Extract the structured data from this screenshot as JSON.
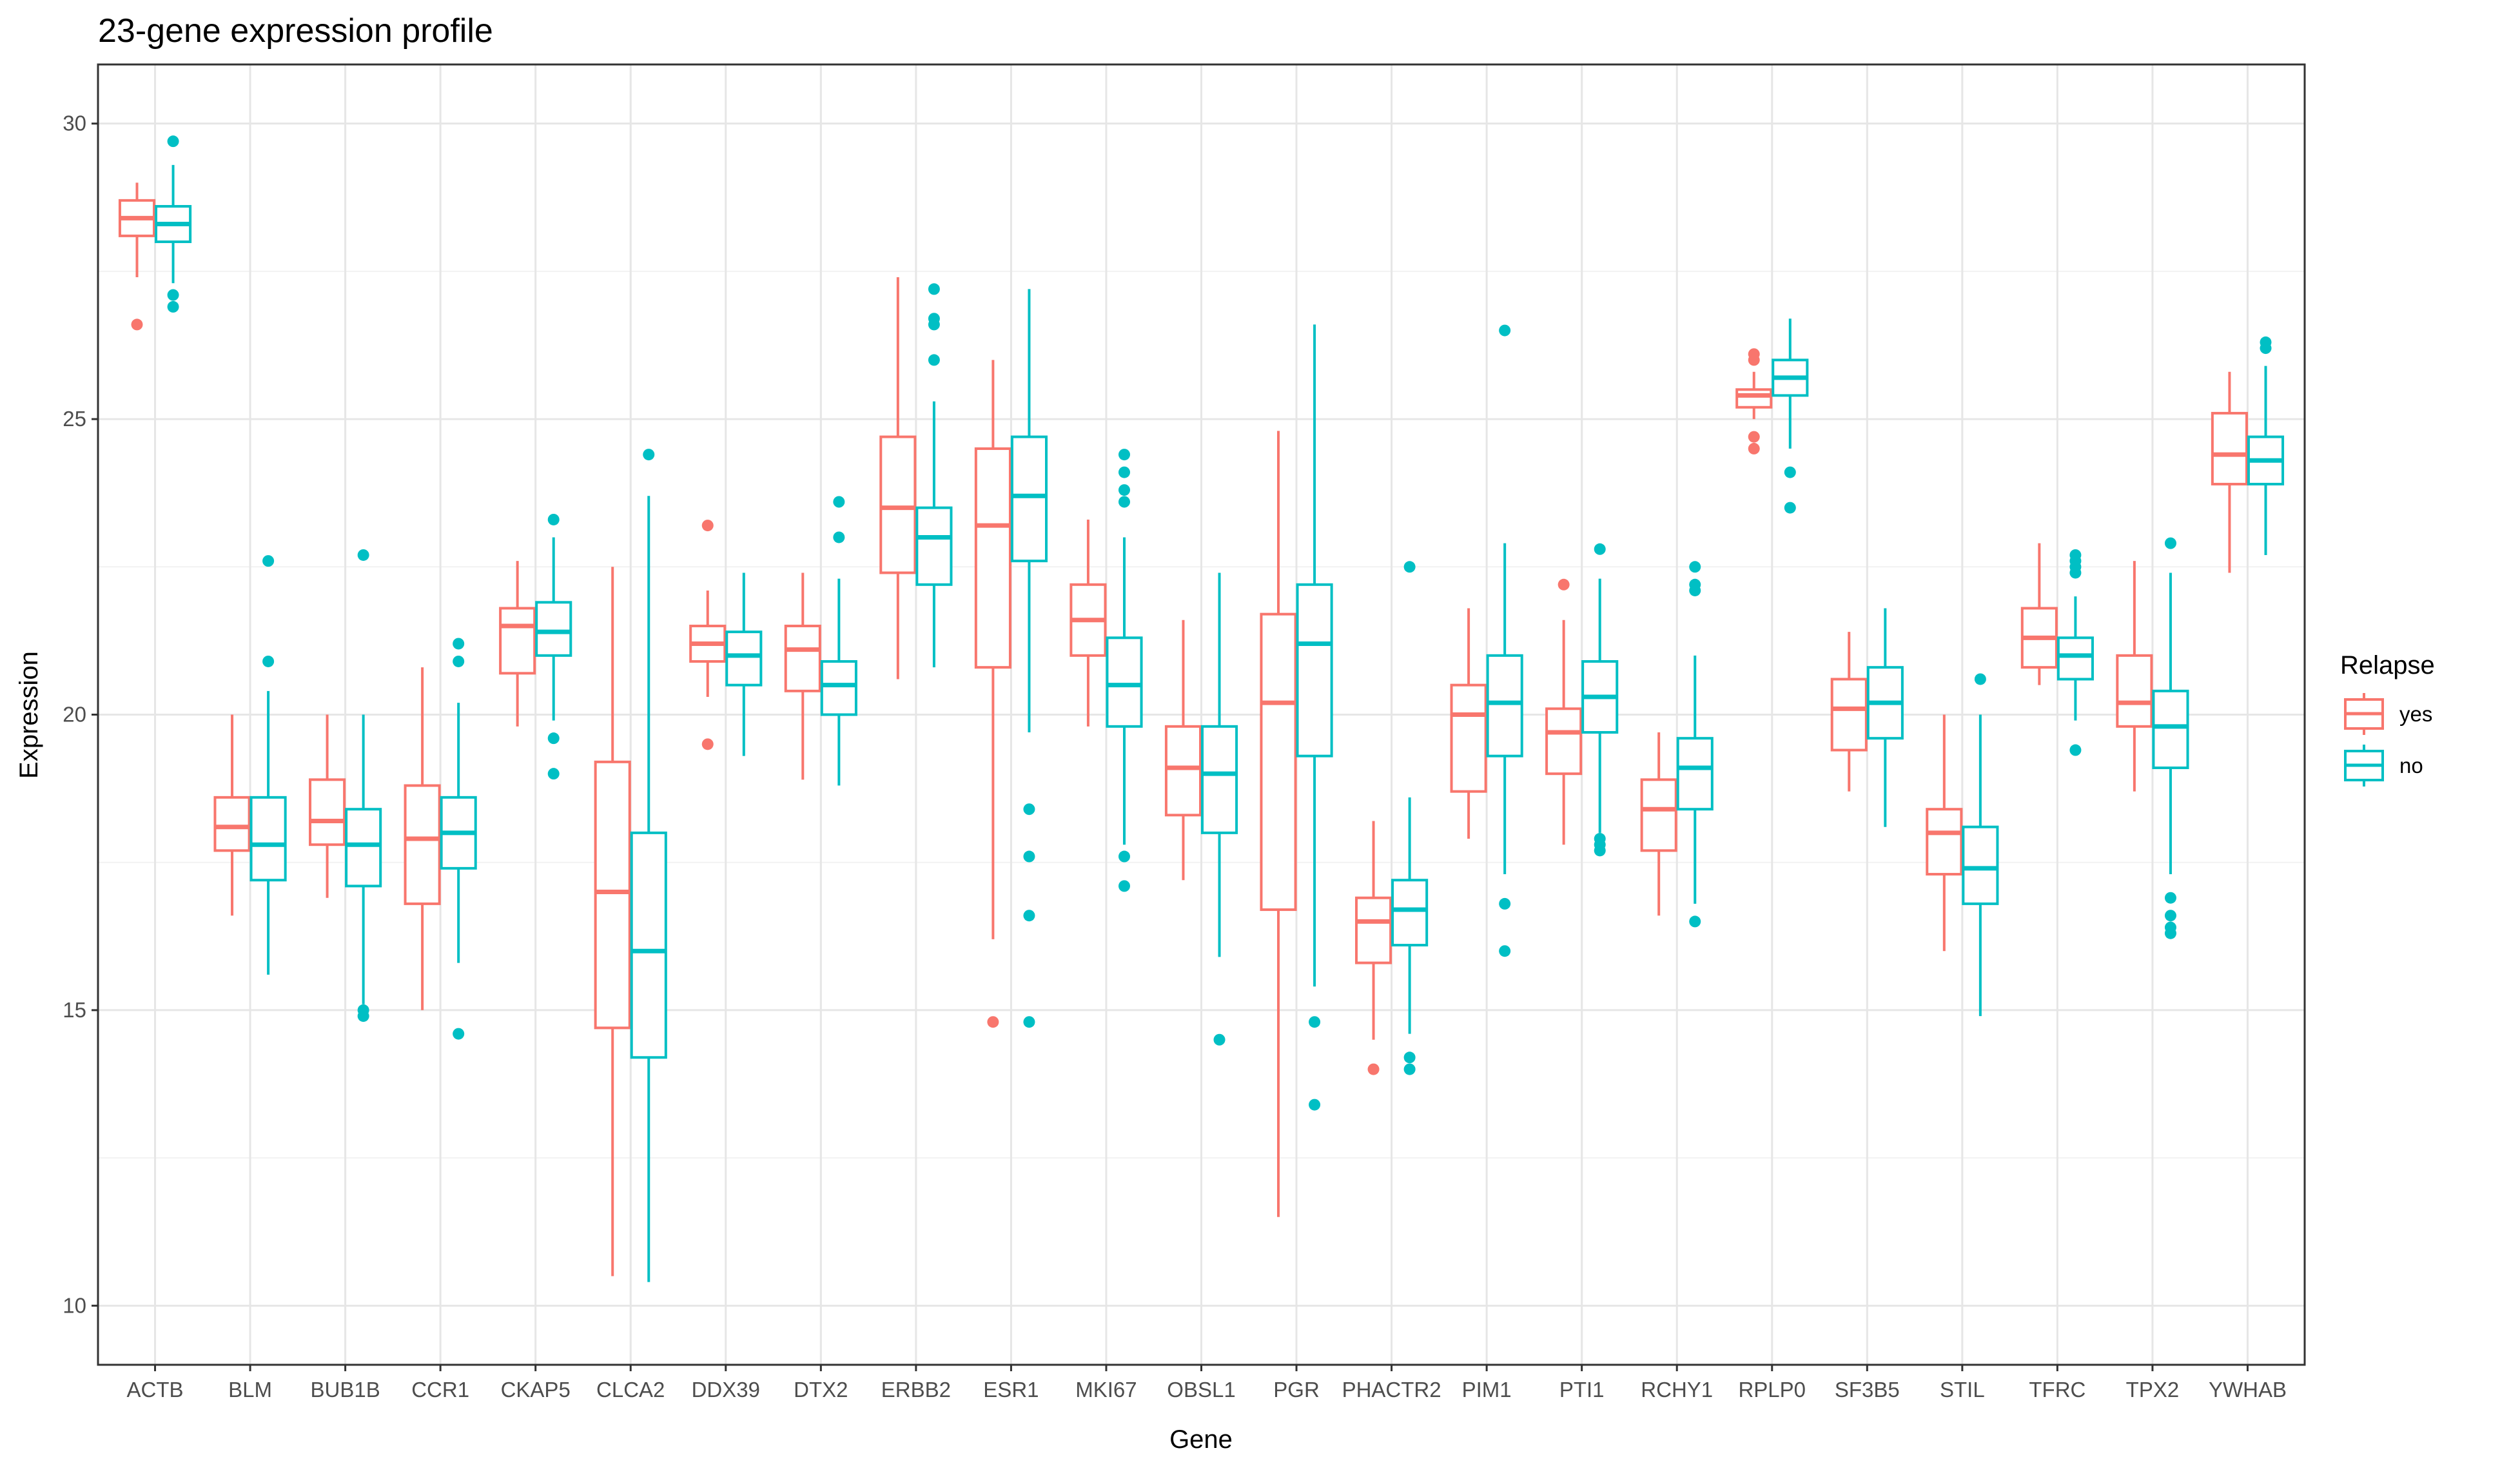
{
  "chart_data": {
    "type": "boxplot",
    "title": "23-gene expression profile",
    "xlabel": "Gene",
    "ylabel": "Expression",
    "ylim": [
      9,
      31
    ],
    "yticks": [
      10,
      15,
      20,
      25,
      30
    ],
    "grid": true,
    "legend": {
      "title": "Relapse",
      "placement": "right",
      "entries": [
        {
          "name": "yes",
          "color": "#F8766D"
        },
        {
          "name": "no",
          "color": "#00BFC4"
        }
      ]
    },
    "categories": [
      "ACTB",
      "BLM",
      "BUB1B",
      "CCR1",
      "CKAP5",
      "CLCA2",
      "DDX39",
      "DTX2",
      "ERBB2",
      "ESR1",
      "MKI67",
      "OBSL1",
      "PGR",
      "PHACTR2",
      "PIM1",
      "PTI1",
      "RCHY1",
      "RPLP0",
      "SF3B5",
      "STIL",
      "TFRC",
      "TPX2",
      "YWHAB"
    ],
    "series": [
      {
        "name": "yes",
        "color": "#F8766D",
        "boxes": [
          {
            "low": 27.4,
            "q1": 28.1,
            "median": 28.4,
            "q3": 28.7,
            "high": 29.0,
            "outliers": [
              26.6
            ]
          },
          {
            "low": 16.6,
            "q1": 17.7,
            "median": 18.1,
            "q3": 18.6,
            "high": 20.0,
            "outliers": []
          },
          {
            "low": 16.9,
            "q1": 17.8,
            "median": 18.2,
            "q3": 18.9,
            "high": 20.0,
            "outliers": []
          },
          {
            "low": 15.0,
            "q1": 16.8,
            "median": 17.9,
            "q3": 18.8,
            "high": 20.8,
            "outliers": []
          },
          {
            "low": 19.8,
            "q1": 20.7,
            "median": 21.5,
            "q3": 21.8,
            "high": 22.6,
            "outliers": []
          },
          {
            "low": 10.5,
            "q1": 14.7,
            "median": 17.0,
            "q3": 19.2,
            "high": 22.5,
            "outliers": []
          },
          {
            "low": 20.3,
            "q1": 20.9,
            "median": 21.2,
            "q3": 21.5,
            "high": 22.1,
            "outliers": [
              23.2,
              19.5
            ]
          },
          {
            "low": 18.9,
            "q1": 20.4,
            "median": 21.1,
            "q3": 21.5,
            "high": 22.4,
            "outliers": []
          },
          {
            "low": 20.6,
            "q1": 22.4,
            "median": 23.5,
            "q3": 24.7,
            "high": 27.4,
            "outliers": []
          },
          {
            "low": 16.2,
            "q1": 20.8,
            "median": 23.2,
            "q3": 24.5,
            "high": 26.0,
            "outliers": [
              14.8
            ]
          },
          {
            "low": 19.8,
            "q1": 21.0,
            "median": 21.6,
            "q3": 22.2,
            "high": 23.3,
            "outliers": []
          },
          {
            "low": 17.2,
            "q1": 18.3,
            "median": 19.1,
            "q3": 19.8,
            "high": 21.6,
            "outliers": []
          },
          {
            "low": 11.5,
            "q1": 16.7,
            "median": 20.2,
            "q3": 21.7,
            "high": 24.8,
            "outliers": []
          },
          {
            "low": 14.5,
            "q1": 15.8,
            "median": 16.5,
            "q3": 16.9,
            "high": 18.2,
            "outliers": [
              14.0
            ]
          },
          {
            "low": 17.9,
            "q1": 18.7,
            "median": 20.0,
            "q3": 20.5,
            "high": 21.8,
            "outliers": []
          },
          {
            "low": 17.8,
            "q1": 19.0,
            "median": 19.7,
            "q3": 20.1,
            "high": 21.6,
            "outliers": [
              22.2
            ]
          },
          {
            "low": 16.6,
            "q1": 17.7,
            "median": 18.4,
            "q3": 18.9,
            "high": 19.7,
            "outliers": []
          },
          {
            "low": 25.0,
            "q1": 25.2,
            "median": 25.4,
            "q3": 25.5,
            "high": 25.8,
            "outliers": [
              26.0,
              26.1,
              24.7,
              24.5
            ]
          },
          {
            "low": 18.7,
            "q1": 19.4,
            "median": 20.1,
            "q3": 20.6,
            "high": 21.4,
            "outliers": []
          },
          {
            "low": 16.0,
            "q1": 17.3,
            "median": 18.0,
            "q3": 18.4,
            "high": 20.0,
            "outliers": []
          },
          {
            "low": 20.5,
            "q1": 20.8,
            "median": 21.3,
            "q3": 21.8,
            "high": 22.9,
            "outliers": []
          },
          {
            "low": 18.7,
            "q1": 19.8,
            "median": 20.2,
            "q3": 21.0,
            "high": 22.6,
            "outliers": []
          },
          {
            "low": 22.4,
            "q1": 23.9,
            "median": 24.4,
            "q3": 25.1,
            "high": 25.8,
            "outliers": []
          }
        ]
      },
      {
        "name": "no",
        "color": "#00BFC4",
        "boxes": [
          {
            "low": 27.3,
            "q1": 28.0,
            "median": 28.3,
            "q3": 28.6,
            "high": 29.3,
            "outliers": [
              29.7,
              27.1,
              26.9
            ]
          },
          {
            "low": 15.6,
            "q1": 17.2,
            "median": 17.8,
            "q3": 18.6,
            "high": 20.4,
            "outliers": [
              22.6,
              20.9
            ]
          },
          {
            "low": 15.1,
            "q1": 17.1,
            "median": 17.8,
            "q3": 18.4,
            "high": 20.0,
            "outliers": [
              22.7,
              15.0,
              14.9
            ]
          },
          {
            "low": 15.8,
            "q1": 17.4,
            "median": 18.0,
            "q3": 18.6,
            "high": 20.2,
            "outliers": [
              21.2,
              20.9,
              14.6
            ]
          },
          {
            "low": 19.9,
            "q1": 21.0,
            "median": 21.4,
            "q3": 21.9,
            "high": 23.0,
            "outliers": [
              23.3,
              19.6,
              19.0
            ]
          },
          {
            "low": 10.4,
            "q1": 14.2,
            "median": 16.0,
            "q3": 18.0,
            "high": 23.7,
            "outliers": [
              24.4
            ]
          },
          {
            "low": 19.3,
            "q1": 20.5,
            "median": 21.0,
            "q3": 21.4,
            "high": 22.4,
            "outliers": []
          },
          {
            "low": 18.8,
            "q1": 20.0,
            "median": 20.5,
            "q3": 20.9,
            "high": 22.3,
            "outliers": [
              23.6,
              23.0
            ]
          },
          {
            "low": 20.8,
            "q1": 22.2,
            "median": 23.0,
            "q3": 23.5,
            "high": 25.3,
            "outliers": [
              27.2,
              26.7,
              26.6,
              26.0
            ]
          },
          {
            "low": 19.7,
            "q1": 22.6,
            "median": 23.7,
            "q3": 24.7,
            "high": 27.2,
            "outliers": [
              18.4,
              17.6,
              16.6,
              14.8
            ]
          },
          {
            "low": 17.8,
            "q1": 19.8,
            "median": 20.5,
            "q3": 21.3,
            "high": 23.0,
            "outliers": [
              24.4,
              24.1,
              23.8,
              23.6,
              17.6,
              17.1
            ]
          },
          {
            "low": 15.9,
            "q1": 18.0,
            "median": 19.0,
            "q3": 19.8,
            "high": 22.4,
            "outliers": [
              14.5
            ]
          },
          {
            "low": 15.4,
            "q1": 19.3,
            "median": 21.2,
            "q3": 22.2,
            "high": 26.6,
            "outliers": [
              14.8,
              13.4
            ]
          },
          {
            "low": 14.6,
            "q1": 16.1,
            "median": 16.7,
            "q3": 17.2,
            "high": 18.6,
            "outliers": [
              22.5,
              14.2,
              14.0
            ]
          },
          {
            "low": 17.3,
            "q1": 19.3,
            "median": 20.2,
            "q3": 21.0,
            "high": 22.9,
            "outliers": [
              26.5,
              16.8,
              16.0
            ]
          },
          {
            "low": 18.0,
            "q1": 19.7,
            "median": 20.3,
            "q3": 20.9,
            "high": 22.3,
            "outliers": [
              22.8,
              17.9,
              17.8,
              17.7
            ]
          },
          {
            "low": 16.8,
            "q1": 18.4,
            "median": 19.1,
            "q3": 19.6,
            "high": 21.0,
            "outliers": [
              22.5,
              22.2,
              22.1,
              16.5
            ]
          },
          {
            "low": 24.5,
            "q1": 25.4,
            "median": 25.7,
            "q3": 26.0,
            "high": 26.7,
            "outliers": [
              24.1,
              23.5
            ]
          },
          {
            "low": 18.1,
            "q1": 19.6,
            "median": 20.2,
            "q3": 20.8,
            "high": 21.8,
            "outliers": []
          },
          {
            "low": 14.9,
            "q1": 16.8,
            "median": 17.4,
            "q3": 18.1,
            "high": 20.0,
            "outliers": [
              20.6
            ]
          },
          {
            "low": 19.9,
            "q1": 20.6,
            "median": 21.0,
            "q3": 21.3,
            "high": 22.0,
            "outliers": [
              22.7,
              22.6,
              22.5,
              22.4,
              19.4
            ]
          },
          {
            "low": 17.3,
            "q1": 19.1,
            "median": 19.8,
            "q3": 20.4,
            "high": 22.4,
            "outliers": [
              22.9,
              16.9,
              16.6,
              16.4,
              16.3
            ]
          },
          {
            "low": 22.7,
            "q1": 23.9,
            "median": 24.3,
            "q3": 24.7,
            "high": 25.9,
            "outliers": [
              26.3,
              26.2
            ]
          }
        ]
      }
    ]
  }
}
